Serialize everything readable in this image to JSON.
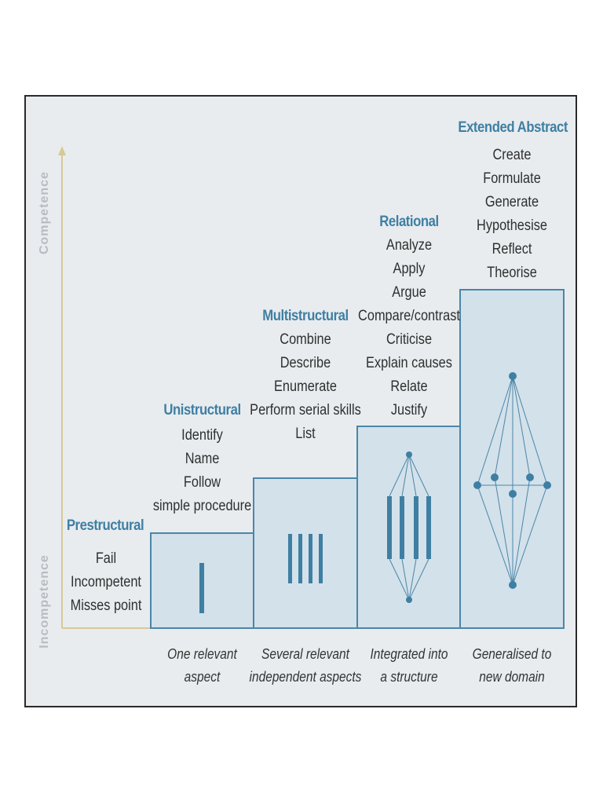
{
  "axis": {
    "top_label": "Competence",
    "bottom_label": "Incompetence"
  },
  "colors": {
    "accent": "#3f7fa3",
    "block_fill": "#d3e1ea",
    "block_stroke": "#4a86a8",
    "axis_line": "#d8c896"
  },
  "levels": [
    {
      "title": "Prestructural",
      "verbs": [
        "Fail",
        "Incompetent",
        "Misses point"
      ],
      "caption": []
    },
    {
      "title": "Unistructural",
      "verbs": [
        "Identify",
        "Name",
        "Follow",
        "simple procedure"
      ],
      "caption": [
        "One relevant",
        "aspect"
      ]
    },
    {
      "title": "Multistructural",
      "verbs": [
        "Combine",
        "Describe",
        "Enumerate",
        "Perform serial skills",
        "List"
      ],
      "caption": [
        "Several relevant",
        "independent aspects"
      ]
    },
    {
      "title": "Relational",
      "verbs": [
        "Analyze",
        "Apply",
        "Argue",
        "Compare/contrast",
        "Criticise",
        "Explain causes",
        "Relate",
        "Justify"
      ],
      "caption": [
        "Integrated into",
        "a structure"
      ]
    },
    {
      "title": "Extended Abstract",
      "verbs": [
        "Create",
        "Formulate",
        "Generate",
        "Hypothesise",
        "Reflect",
        "Theorise"
      ],
      "caption": [
        "Generalised to",
        "new domain"
      ]
    }
  ]
}
